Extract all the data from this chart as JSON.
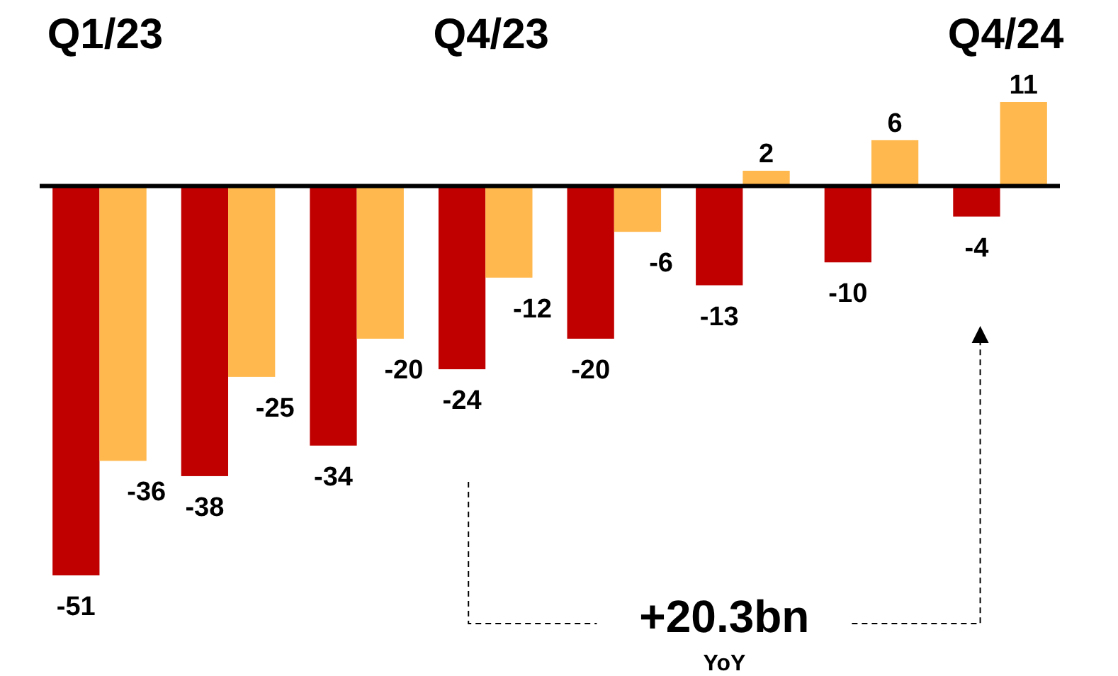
{
  "chart_data": {
    "type": "bar",
    "categories": [
      "Q1/23",
      null,
      null,
      "Q4/23",
      null,
      null,
      null,
      "Q4/24"
    ],
    "series": [
      {
        "color": "#c00000",
        "values": [
          -51,
          -38,
          -34,
          -24,
          -20,
          -13,
          -10,
          -4
        ]
      },
      {
        "color": "#ffb84d",
        "values": [
          -36,
          -25,
          -20,
          -12,
          -6,
          2,
          6,
          11
        ]
      }
    ],
    "data_labels": true,
    "annotations": [
      "+20.3bn",
      "YoY"
    ]
  }
}
